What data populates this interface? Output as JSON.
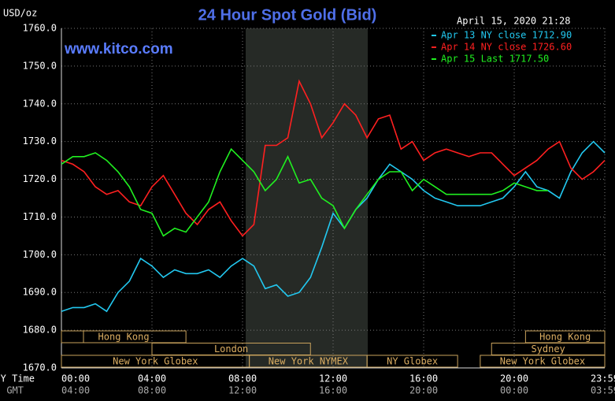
{
  "chart_data": {
    "type": "line",
    "title": "24 Hour Spot Gold (Bid)",
    "y_label": "USD/oz",
    "source": "www.kitco.com",
    "timestamp": "April 15, 2020 21:28",
    "x_axis_label": "NY Time",
    "x2_axis_label": "GMT",
    "x": [
      0,
      0.5,
      1,
      1.5,
      2,
      2.5,
      3,
      3.5,
      4,
      4.5,
      5,
      5.5,
      6,
      6.5,
      7,
      7.5,
      8,
      8.5,
      9,
      9.5,
      10,
      10.5,
      11,
      11.5,
      12,
      12.5,
      13,
      13.5,
      14,
      14.5,
      15,
      15.5,
      16,
      16.5,
      17,
      17.5,
      18,
      18.5,
      19,
      19.5,
      20,
      20.5,
      21,
      21.5,
      22,
      22.5,
      23,
      23.5,
      24
    ],
    "xlim": [
      0,
      24
    ],
    "xticks": [
      {
        "value": 0,
        "label": "00:00"
      },
      {
        "value": 4,
        "label": "04:00"
      },
      {
        "value": 8,
        "label": "08:00"
      },
      {
        "value": 12,
        "label": "12:00"
      },
      {
        "value": 16,
        "label": "16:00"
      },
      {
        "value": 20,
        "label": "20:00"
      },
      {
        "value": 24,
        "label": "23:59"
      }
    ],
    "x2ticks": [
      "04:00",
      "08:00",
      "12:00",
      "16:00",
      "20:00",
      "00:00",
      "03:59"
    ],
    "ylim": [
      1670,
      1760
    ],
    "yticks": [
      {
        "value": 1670,
        "label": "1670.0"
      },
      {
        "value": 1680,
        "label": "1680.0"
      },
      {
        "value": 1690,
        "label": "1690.0"
      },
      {
        "value": 1700,
        "label": "1700.0"
      },
      {
        "value": 1710,
        "label": "1710.0"
      },
      {
        "value": 1720,
        "label": "1720.0"
      },
      {
        "value": 1730,
        "label": "1730.0"
      },
      {
        "value": 1740,
        "label": "1740.0"
      },
      {
        "value": 1750,
        "label": "1750.0"
      },
      {
        "value": 1760,
        "label": "1760.0"
      }
    ],
    "grid": true,
    "series": [
      {
        "name": "Apr 13 NY close 1712.90",
        "color": "#22c8f0",
        "values": [
          1685,
          1686,
          1686,
          1687,
          1685,
          1690,
          1693,
          1699,
          1697,
          1694,
          1696,
          1695,
          1695,
          1696,
          1694,
          1697,
          1699,
          1697,
          1691,
          1692,
          1689,
          1690,
          1694,
          1702,
          1711,
          1707,
          1712,
          1715,
          1720,
          1724,
          1722,
          1720,
          1717,
          1715,
          1714,
          1713,
          1713,
          1713,
          1714,
          1715,
          1718,
          1722,
          1718,
          1717,
          1715,
          1722,
          1727,
          1730,
          1727
        ]
      },
      {
        "name": "Apr 14 NY close 1726.60",
        "color": "#ff2020",
        "values": [
          1725,
          1724,
          1722,
          1718,
          1716,
          1717,
          1714,
          1713,
          1718,
          1721,
          1716,
          1711,
          1708,
          1712,
          1714,
          1709,
          1705,
          1708,
          1729,
          1729,
          1731,
          1746,
          1740,
          1731,
          1735,
          1740,
          1737,
          1731,
          1736,
          1737,
          1728,
          1730,
          1725,
          1727,
          1728,
          1727,
          1726,
          1727,
          1727,
          1724,
          1721,
          1723,
          1725,
          1728,
          1730,
          1723,
          1720,
          1722,
          1725
        ]
      },
      {
        "name": "Apr 15 Last 1717.50",
        "color": "#20f020",
        "values": [
          1724,
          1726,
          1726,
          1727,
          1725,
          1722,
          1718,
          1712,
          1711,
          1705,
          1707,
          1706,
          1710,
          1714,
          1722,
          1728,
          1725,
          1722,
          1717,
          1720,
          1726,
          1719,
          1720,
          1715,
          1713,
          1707,
          1712,
          1716,
          1720,
          1722,
          1722,
          1717,
          1720,
          1718,
          1716,
          1716,
          1716,
          1716,
          1716,
          1717,
          1719,
          1718,
          1717,
          1717,
          null,
          null,
          null,
          null,
          null
        ]
      }
    ],
    "sessions": [
      [
        {
          "label": "Hong Kong",
          "start": 0,
          "end": 5.5
        },
        {
          "label": "Hong Kong",
          "start": 20.5,
          "end": 24
        }
      ],
      [
        {
          "label": "London",
          "start": 4,
          "end": 11
        },
        {
          "label": "Sydney",
          "start": 19,
          "end": 24
        }
      ],
      [
        {
          "label": "New York Globex",
          "start": 0,
          "end": 8.3
        },
        {
          "label": "New York NYMEX",
          "start": 8.3,
          "end": 13.5
        },
        {
          "label": "NY Globex",
          "start": 13.5,
          "end": 17.5
        },
        {
          "label": "New York Globex",
          "start": 18.5,
          "end": 24
        }
      ]
    ]
  }
}
